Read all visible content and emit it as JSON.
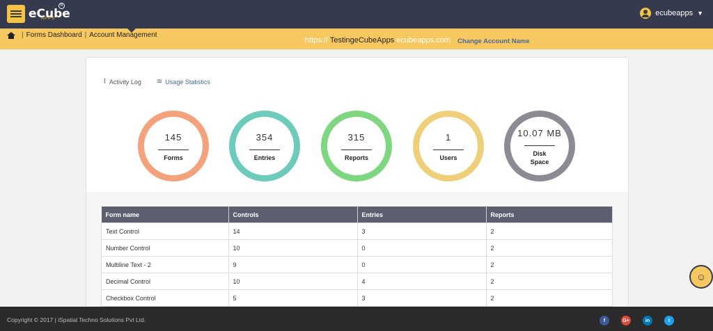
{
  "brand": {
    "name": "eCube",
    "sub": "APPS",
    "reg": "R"
  },
  "user": {
    "name": "ecubeapps",
    "chevron": "chevron-down-icon"
  },
  "breadcrumb": {
    "home_icon": "home-icon",
    "items": [
      "Forms Dashboard",
      "Account Management"
    ]
  },
  "account": {
    "url_prefix": "https://",
    "url_name": "TestingeCubeApps",
    "url_domain": "ecubeapps.com",
    "change_label": "Change Account Name"
  },
  "tabs": [
    {
      "label": "Activity Log",
      "icon": "activity-icon"
    },
    {
      "label": "Usage Statistics",
      "icon": "stats-icon"
    }
  ],
  "stats": [
    {
      "value": "145",
      "label": "Forms",
      "color": "#f4a27b"
    },
    {
      "value": "354",
      "label": "Entries",
      "color": "#6dcbbc"
    },
    {
      "value": "315",
      "label": "Reports",
      "color": "#7ed67e"
    },
    {
      "value": "1",
      "label": "Users",
      "color": "#f0cf7a"
    },
    {
      "value": "10.07 MB",
      "label": "Disk Space",
      "color": "#8c8b93"
    }
  ],
  "table": {
    "headers": [
      "Form name",
      "Controls",
      "Entries",
      "Reports"
    ],
    "rows": [
      [
        "Text Control",
        "14",
        "3",
        "2"
      ],
      [
        "Number Control",
        "10",
        "0",
        "2"
      ],
      [
        "Multiline Text - 2",
        "9",
        "0",
        "2"
      ],
      [
        "Decimal Control",
        "10",
        "4",
        "2"
      ],
      [
        "Checkbox Control",
        "5",
        "3",
        "2"
      ]
    ]
  },
  "footer": {
    "copyright": "Copyright © 2017 | iSpatial Techno Solutions Pvt Ltd."
  },
  "social": [
    {
      "icon": "facebook-icon",
      "glyph": "f",
      "color": "#3b5998"
    },
    {
      "icon": "google-plus-icon",
      "glyph": "G+",
      "color": "#dd4b39"
    },
    {
      "icon": "linkedin-icon",
      "glyph": "in",
      "color": "#0077b5"
    },
    {
      "icon": "twitter-icon",
      "glyph": "t",
      "color": "#1da1f2"
    }
  ]
}
